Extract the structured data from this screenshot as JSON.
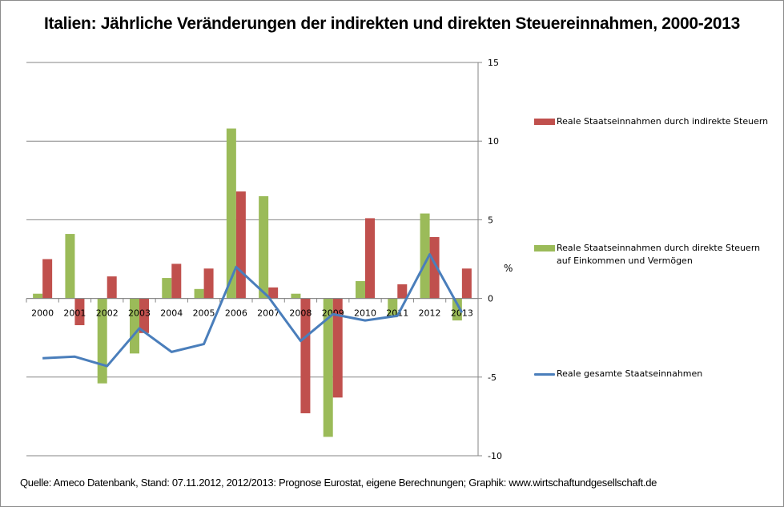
{
  "chart_data": {
    "type": "bar",
    "title": "Italien: Jährliche Veränderungen der indirekten und direkten Steuereinnahmen, 2000-2013",
    "xlabel": "",
    "ylabel": "%",
    "ylim": [
      -10,
      15
    ],
    "yticks": [
      "15",
      "10",
      "5",
      "0",
      "-5",
      "-10"
    ],
    "ytick_values": [
      15,
      10,
      5,
      0,
      -5,
      -10
    ],
    "y_axis_side": "right",
    "grid": true,
    "legend_placement": "right",
    "categories": [
      "2000",
      "2001",
      "2002",
      "2003",
      "2004",
      "2005",
      "2006",
      "2007",
      "2008",
      "2009",
      "2010",
      "2011",
      "2012",
      "2013"
    ],
    "series": [
      {
        "name": "Reale Staatseinnahmen  durch direkte Steuern auf Einkommen und Vermögen",
        "kind": "bar",
        "color": "#9bbb59",
        "values": [
          0.3,
          4.1,
          -5.4,
          -3.5,
          1.3,
          0.6,
          10.8,
          6.5,
          0.3,
          -8.8,
          1.1,
          -1.2,
          5.4,
          -1.4
        ]
      },
      {
        "name": "Reale Staatseinnahmen  durch indirekte Steuern",
        "kind": "bar",
        "color": "#c0504d",
        "values": [
          2.5,
          -1.7,
          1.4,
          -2.2,
          2.2,
          1.9,
          6.8,
          0.7,
          -7.3,
          -6.3,
          5.1,
          0.9,
          3.9,
          1.9
        ]
      },
      {
        "name": "Reale gesamte Staatseinnahmen",
        "kind": "line",
        "color": "#4a7ebb",
        "values": [
          -3.8,
          -3.7,
          -4.3,
          -1.9,
          -3.4,
          -2.9,
          2.0,
          0.1,
          -2.7,
          -1.0,
          -1.4,
          -1.1,
          2.8,
          -0.9
        ]
      }
    ],
    "legend": [
      {
        "label": "Reale Staatseinnahmen  durch indirekte Steuern",
        "color": "#c0504d",
        "kind": "bar"
      },
      {
        "label": "Reale Staatseinnahmen  durch direkte Steuern auf Einkommen und Vermögen",
        "color": "#9bbb59",
        "kind": "bar"
      },
      {
        "label": "Reale gesamte Staatseinnahmen",
        "color": "#4a7ebb",
        "kind": "line"
      }
    ],
    "source": "Quelle: Ameco Datenbank, Stand: 07.11.2012,  2012/2013:  Prognose Eurostat, eigene Berechnungen; Graphik: www.wirtschaftundgesellschaft.de"
  }
}
